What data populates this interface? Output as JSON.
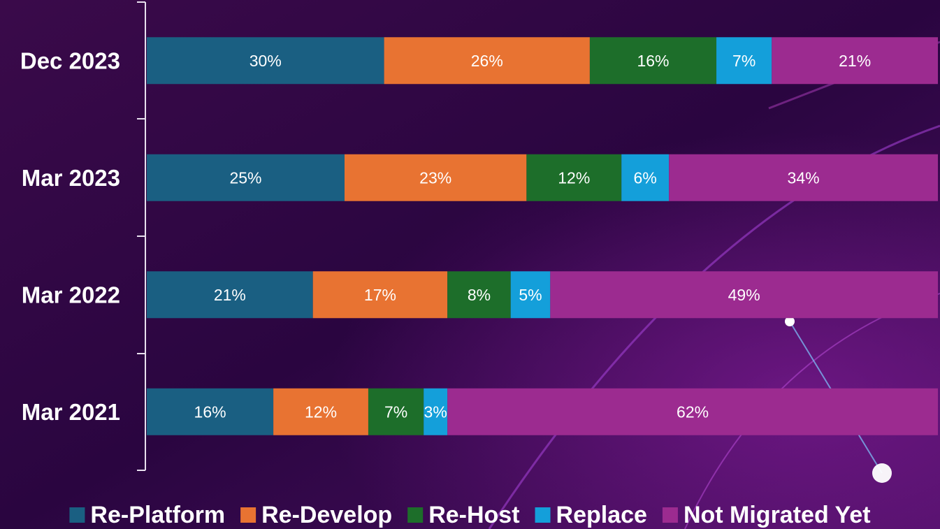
{
  "chart_data": {
    "type": "stacked-barh",
    "categories": [
      "Dec 2023",
      "Mar 2023",
      "Mar 2022",
      "Mar 2021"
    ],
    "xlim": [
      0,
      100
    ],
    "legend": "bottom",
    "series": [
      {
        "name": "Re-Platform",
        "color": "#1a5f82",
        "values": [
          30,
          25,
          21,
          16
        ],
        "value_labels": [
          "30%",
          "25%",
          "21%",
          "16%"
        ]
      },
      {
        "name": "Re-Develop",
        "color": "#e87332",
        "values": [
          26,
          23,
          17,
          12
        ],
        "value_labels": [
          "26%",
          "23%",
          "17%",
          "12%"
        ]
      },
      {
        "name": "Re-Host",
        "color": "#1d6e2a",
        "values": [
          16,
          12,
          8,
          7
        ],
        "value_labels": [
          "16%",
          "12%",
          "8%",
          "7%"
        ]
      },
      {
        "name": "Replace",
        "color": "#149fda",
        "values": [
          7,
          6,
          5,
          3
        ],
        "value_labels": [
          "7%",
          "6%",
          "5%",
          "3%"
        ]
      },
      {
        "name": "Not Migrated Yet",
        "color": "#9c2b90",
        "values": [
          21,
          34,
          49,
          62
        ],
        "value_labels": [
          "21%",
          "34%",
          "49%",
          "62%"
        ]
      }
    ]
  }
}
